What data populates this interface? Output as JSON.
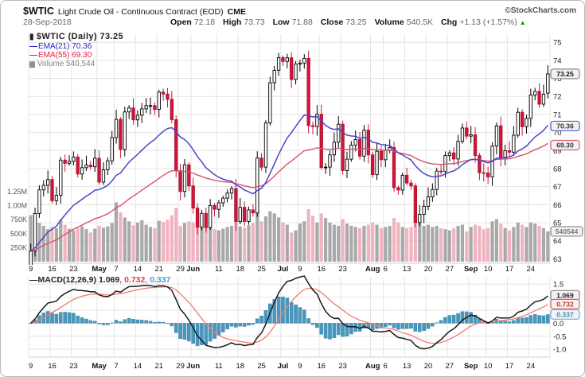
{
  "header": {
    "symbol": "$WTIC",
    "title": "Light Crude Oil - Continuous Contract (EOD)",
    "exchange": "CME",
    "source": "©StockCharts.com",
    "date": "28-Sep-2018",
    "quote": {
      "open": {
        "label": "Open",
        "value": "72.18"
      },
      "high": {
        "label": "High",
        "value": "73.73"
      },
      "low": {
        "label": "Low",
        "value": "71.88"
      },
      "close": {
        "label": "Close",
        "value": "73.25"
      },
      "volume": {
        "label": "Volume",
        "value": "540.5K"
      },
      "chg": {
        "label": "Chg",
        "value": "+1.13 (+1.57%)"
      }
    }
  },
  "icons": {
    "candle": "▮",
    "bars": "▆",
    "dash": "—",
    "up_triangle": "▲"
  },
  "legend": {
    "main": "$WTIC (Daily) 73.25",
    "ema21": "EMA(21) 70.36",
    "ema55": "EMA(55) 69.30",
    "volume": "Volume 540,544"
  },
  "macd": {
    "name": "MACD(12,26,9)",
    "p1": " 1.069",
    "p2": ", 0.732",
    "p3": ", 0.337"
  },
  "colors": {
    "up": "#ffffff",
    "up_border": "#000000",
    "down": "#d0173a",
    "down_border": "#b01030",
    "ema21": "#4a46c8",
    "ema55": "#d8536e",
    "vol_up": "#a9a9a9",
    "vol_down": "#f0b4c0",
    "macd_line": "#1a1a1a",
    "macd_signal": "#f27a72",
    "macd_hist": "#4b97bc",
    "macd_hist_border": "#2f7fa6",
    "grid": "#e4e4e4",
    "axis_text": "#222222",
    "vol_axis_text": "#555555",
    "box_gray_border": "#888888",
    "box_blue_border": "#5a5ad0",
    "box_red_border": "#e06078",
    "green": "#089000"
  },
  "chart_data": [
    {
      "type": "candlestick",
      "title": "$WTIC (Daily)",
      "last_close": 73.25,
      "last_ohlc": [
        72.18,
        73.73,
        71.88,
        73.25
      ],
      "ylim": [
        62.75,
        75.45
      ],
      "y_ticks": [
        75,
        74,
        73,
        72,
        71,
        70,
        69,
        68,
        67,
        66,
        65,
        64,
        63
      ],
      "price_boxes": [
        {
          "text": "73.25",
          "value": 73.25,
          "style": "gray"
        },
        {
          "text": "70.36",
          "value": 70.36,
          "style": "blue"
        },
        {
          "text": "69.30",
          "value": 69.3,
          "style": "red"
        },
        {
          "text": "540544",
          "value_volume_k": 540.5,
          "style": "grayvol"
        }
      ],
      "overlays": [
        {
          "name": "EMA(21)",
          "period": 21,
          "last": 70.36
        },
        {
          "name": "EMA(55)",
          "period": 55,
          "last": 69.3
        }
      ],
      "volume_axis": {
        "ylim_k": [
          0,
          1250
        ],
        "ticks_k": [
          1250,
          1000,
          750,
          500,
          250
        ],
        "tick_labels": [
          "1.25M",
          "1.00M",
          "750K",
          "500K",
          "250K"
        ],
        "last_volume": 540544
      },
      "x_ticks": [
        [
          0,
          "9"
        ],
        [
          5,
          "16"
        ],
        [
          10,
          "23"
        ],
        [
          16,
          "May"
        ],
        [
          20,
          "7"
        ],
        [
          25,
          "14"
        ],
        [
          30,
          "21"
        ],
        [
          35,
          "29"
        ],
        [
          38,
          "Jun"
        ],
        [
          44,
          "11"
        ],
        [
          49,
          "18"
        ],
        [
          54,
          "25"
        ],
        [
          59,
          "Jul"
        ],
        [
          63,
          "9"
        ],
        [
          68,
          "16"
        ],
        [
          73,
          "23"
        ],
        [
          80,
          "Aug"
        ],
        [
          83,
          "6"
        ],
        [
          88,
          "13"
        ],
        [
          93,
          "20"
        ],
        [
          98,
          "27"
        ],
        [
          103,
          "Sep"
        ],
        [
          107,
          "10"
        ],
        [
          112,
          "17"
        ],
        [
          117,
          "24"
        ]
      ],
      "closes": [
        63.42,
        65.51,
        66.82,
        67.07,
        67.39,
        66.22,
        66.52,
        68.47,
        68.29,
        68.4,
        68.64,
        67.7,
        68.05,
        68.19,
        68.1,
        68.57,
        67.25,
        67.93,
        68.43,
        69.72,
        70.73,
        69.06,
        71.14,
        71.36,
        70.7,
        70.96,
        71.31,
        71.49,
        71.49,
        71.28,
        72.24,
        72.13,
        71.84,
        70.71,
        67.88,
        66.73,
        68.21,
        67.04,
        65.81,
        64.75,
        65.52,
        64.73,
        65.95,
        65.74,
        66.1,
        66.36,
        66.64,
        66.89,
        65.06,
        65.85,
        65.07,
        65.71,
        65.54,
        68.58,
        68.08,
        70.53,
        72.76,
        73.45,
        74.15,
        73.94,
        74.14,
        72.94,
        73.8,
        73.85,
        74.11,
        70.38,
        70.33,
        71.01,
        68.06,
        68.08,
        68.76,
        69.46,
        70.46,
        67.89,
        68.52,
        69.3,
        69.61,
        68.69,
        70.13,
        68.76,
        67.66,
        68.96,
        68.49,
        69.01,
        69.17,
        66.94,
        66.81,
        67.63,
        67.2,
        67.04,
        65.01,
        65.46,
        65.91,
        66.43,
        66.84,
        67.86,
        67.83,
        68.72,
        68.87,
        68.53,
        69.51,
        70.25,
        69.8,
        69.87,
        68.72,
        67.77,
        67.75,
        67.54,
        69.25,
        70.37,
        68.59,
        68.99,
        68.91,
        69.85,
        71.12,
        70.32,
        70.78,
        72.08,
        72.28,
        71.57,
        72.12,
        73.25
      ],
      "volumes_k": [
        830,
        760,
        690,
        640,
        580,
        620,
        600,
        750,
        660,
        590,
        560,
        600,
        630,
        580,
        520,
        590,
        640,
        610,
        630,
        690,
        1060,
        880,
        790,
        720,
        650,
        700,
        740,
        660,
        620,
        600,
        730,
        710,
        750,
        830,
        960,
        640,
        690,
        720,
        700,
        680,
        650,
        630,
        610,
        580,
        560,
        590,
        620,
        640,
        700,
        630,
        610,
        650,
        690,
        980,
        720,
        810,
        900,
        860,
        790,
        700,
        660,
        520,
        560,
        680,
        720,
        940,
        820,
        700,
        860,
        780,
        700,
        660,
        640,
        760,
        680,
        640,
        620,
        600,
        640,
        660,
        700,
        660,
        600,
        620,
        640,
        780,
        700,
        620,
        600,
        620,
        850,
        720,
        640,
        660,
        620,
        640,
        600,
        580,
        560,
        600,
        640,
        660,
        540,
        620,
        660,
        640,
        580,
        600,
        720,
        760,
        680,
        600,
        560,
        620,
        700,
        660,
        620,
        700,
        680,
        640,
        600,
        541
      ]
    },
    {
      "type": "line",
      "title": "MACD(12,26,9)",
      "params": [
        12,
        26,
        9
      ],
      "last_values": {
        "macd": 1.069,
        "signal": 0.732,
        "hist": 0.337
      },
      "ylim": [
        -1.3,
        1.75
      ],
      "y_ticks": [
        1.5,
        0.0,
        -0.5,
        -1.0
      ],
      "y_tick_labels": [
        "1.5",
        "0.0",
        "-0.5",
        "-1.0"
      ],
      "grid_values": [
        1.5,
        1.0,
        0.5,
        0.0,
        -0.5,
        -1.0
      ],
      "macd_boxes": [
        {
          "text": "1.069",
          "value": 1.069,
          "style": "gray"
        },
        {
          "text": "0.732",
          "value": 0.732,
          "style": "red"
        },
        {
          "text": "0.337",
          "value": 0.337,
          "style": "blue"
        }
      ]
    }
  ]
}
